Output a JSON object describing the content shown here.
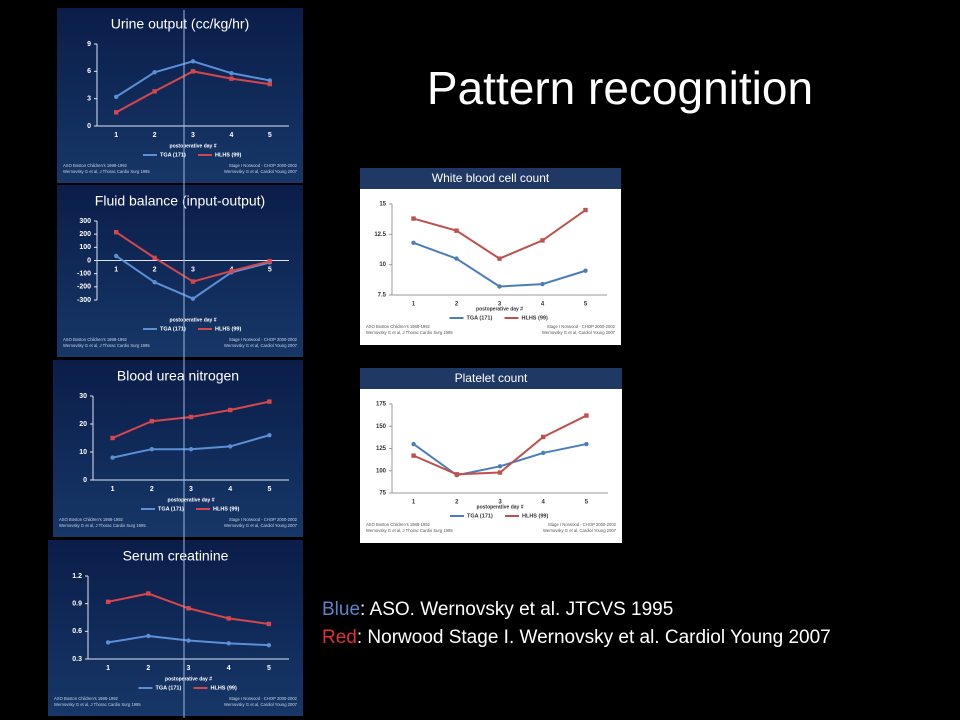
{
  "slide_title": "Pattern recognition",
  "caption": [
    {
      "label": "Blue",
      "text": ": ASO. Wernovsky et al. JTCVS 1995",
      "color": "#5b84c8"
    },
    {
      "label": "Red",
      "text": ": Norwood Stage I. Wernovsky et al. Cardiol Young 2007",
      "color": "#e03030"
    }
  ],
  "chart_data": [
    {
      "type": "line",
      "title": "Urine output (cc/kg/hr)",
      "x_label": "postoperative day #",
      "categories": [
        "1",
        "2",
        "3",
        "4",
        "5"
      ],
      "series": [
        {
          "name": "TGA (171)",
          "color": "#5b8fd6",
          "values": [
            3.2,
            5.9,
            7.1,
            5.8,
            5.0
          ]
        },
        {
          "name": "HLHS (99)",
          "color": "#d6474a",
          "values": [
            1.5,
            3.8,
            6.0,
            5.2,
            4.6
          ]
        }
      ],
      "ylim": [
        0,
        9
      ],
      "yticks": [
        0,
        3,
        6,
        9
      ],
      "legend": "bottom",
      "notes": [
        "ASO Boston Children's 1988-1992",
        "Wernovsky G et al, J Thorac Cardio Surg 1995",
        "Stage I Norwood - CHOP 2000-2002",
        "Wernovsky G et al, Cardiol Young 2007"
      ]
    },
    {
      "type": "line",
      "title": "Fluid balance (input-output)",
      "x_label": "postoperative day #",
      "categories": [
        "1",
        "2",
        "3",
        "4",
        "5"
      ],
      "series": [
        {
          "name": "TGA (171)",
          "color": "#5b8fd6",
          "values": [
            35,
            -165,
            -290,
            -90,
            -15
          ]
        },
        {
          "name": "HLHS (99)",
          "color": "#d6474a",
          "values": [
            215,
            20,
            -160,
            -80,
            -5
          ]
        }
      ],
      "ylim": [
        -300,
        300
      ],
      "yticks": [
        -300,
        -200,
        -100,
        0,
        100,
        200,
        300
      ],
      "legend": "bottom",
      "notes": [
        "ASO Boston Children's 1988-1992",
        "Wernovsky G et al, J Thorac Cardio Surg 1995",
        "Stage I Norwood - CHOP 2000-2002",
        "Wernovsky G et al, Cardiol Young 2007"
      ]
    },
    {
      "type": "line",
      "title": "Blood urea nitrogen",
      "x_label": "postoperative day #",
      "categories": [
        "1",
        "2",
        "3",
        "4",
        "5"
      ],
      "series": [
        {
          "name": "TGA (171)",
          "color": "#5b8fd6",
          "values": [
            8,
            11,
            11,
            12,
            16
          ]
        },
        {
          "name": "HLHS (99)",
          "color": "#d6474a",
          "values": [
            15,
            21,
            22.5,
            25,
            28
          ]
        }
      ],
      "ylim": [
        0,
        30
      ],
      "yticks": [
        0,
        10,
        20,
        30
      ],
      "legend": "bottom",
      "notes": [
        "ASO Boston Children's 1988-1992",
        "Wernovsky G et al, J Thorac Cardio Surg 1995",
        "Stage I Norwood - CHOP 2000-2002",
        "Wernovsky G et al, Cardiol Young 2007"
      ]
    },
    {
      "type": "line",
      "title": "Serum creatinine",
      "x_label": "postoperative day #",
      "categories": [
        "1",
        "2",
        "3",
        "4",
        "5"
      ],
      "series": [
        {
          "name": "TGA (171)",
          "color": "#5b8fd6",
          "values": [
            0.48,
            0.55,
            0.5,
            0.47,
            0.45
          ]
        },
        {
          "name": "HLHS (99)",
          "color": "#d6474a",
          "values": [
            0.92,
            1.01,
            0.85,
            0.74,
            0.68
          ]
        }
      ],
      "ylim": [
        0.3,
        1.2
      ],
      "yticks": [
        0.3,
        0.6,
        0.9,
        1.2
      ],
      "legend": "bottom",
      "notes": [
        "ASO Boston Children's 1988-1992",
        "Wernovsky G et al, J Thorac Cardio Surg 1995",
        "Stage I Norwood - CHOP 2000-2002",
        "Wernovsky G et al, Cardiol Young 2007"
      ]
    },
    {
      "type": "line",
      "title": "White blood cell count",
      "x_label": "postoperative day #",
      "categories": [
        "1",
        "2",
        "3",
        "4",
        "5"
      ],
      "series": [
        {
          "name": "TGA (171)",
          "color": "#4a7ebb",
          "values": [
            11.8,
            10.5,
            8.2,
            8.4,
            9.5
          ]
        },
        {
          "name": "HLHS (99)",
          "color": "#c0504d",
          "values": [
            13.8,
            12.8,
            10.5,
            12,
            14.5
          ]
        }
      ],
      "ylim": [
        7.5,
        15
      ],
      "yticks": [
        7.5,
        10,
        12.5,
        15
      ],
      "legend": "bottom",
      "notes": [
        "ASO Boston Children's 1988-1992",
        "Wernovsky G et al, J Thorac Cardio Surg 1995",
        "Stage I Norwood - CHOP 2000-2002",
        "Wernovsky G et al, Cardiol Young 2007"
      ]
    },
    {
      "type": "line",
      "title": "Platelet count",
      "x_label": "postoperative day #",
      "categories": [
        "1",
        "2",
        "3",
        "4",
        "5"
      ],
      "series": [
        {
          "name": "TGA (171)",
          "color": "#4a7ebb",
          "values": [
            130,
            95,
            105,
            120,
            130
          ]
        },
        {
          "name": "HLHS (99)",
          "color": "#c0504d",
          "values": [
            117,
            96,
            98,
            138,
            162
          ]
        }
      ],
      "ylim": [
        75,
        175
      ],
      "yticks": [
        75,
        100,
        125,
        150,
        175
      ],
      "legend": "bottom",
      "notes": [
        "ASO Boston Children's 1988-1992",
        "Wernovsky G et al, J Thorac Cardio Surg 1995",
        "Stage I Norwood - CHOP 2000-2002",
        "Wernovsky G et al, Cardiol Young 2007"
      ]
    }
  ]
}
